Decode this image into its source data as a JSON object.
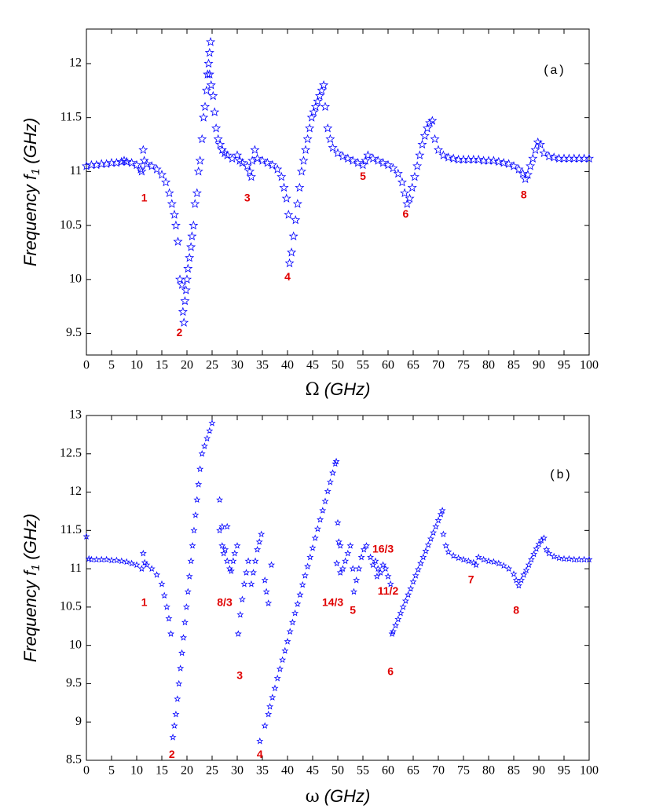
{
  "chart_data": [
    {
      "type": "scatter",
      "panel_label": "(a)",
      "xlabel": {
        "symbol": "Ω",
        "unit": "(GHz)"
      },
      "ylabel": {
        "text": "Frequency f",
        "subscript": "1",
        "unit": "(GHz)"
      },
      "color": "#0000ff",
      "xlim": [
        0,
        100
      ],
      "xticks": [
        0,
        5,
        10,
        15,
        20,
        25,
        30,
        35,
        40,
        45,
        50,
        55,
        60,
        65,
        70,
        75,
        80,
        85,
        90,
        95,
        100
      ],
      "ylim": [
        9.3,
        12.32
      ],
      "yticks": [
        9.5,
        10,
        10.5,
        11,
        11.5,
        12
      ],
      "annotations": [
        "1",
        "2",
        "3",
        "4",
        "5",
        "6",
        "8"
      ],
      "x": [
        0,
        1,
        2,
        3,
        4,
        5,
        6,
        7,
        7.5,
        8,
        9,
        10,
        10.8,
        11,
        11.3,
        11.5,
        12,
        13,
        14,
        15,
        15.8,
        16.5,
        17,
        17.5,
        17.8,
        18.2,
        18.6,
        19,
        19.2,
        19.4,
        19.6,
        19.8,
        20,
        20.2,
        20.5,
        20.8,
        21,
        21.3,
        21.6,
        22,
        22.3,
        22.6,
        23,
        23.3,
        23.6,
        23.9,
        24.1,
        24.3,
        24.5,
        24.7,
        24.5,
        24.8,
        25.2,
        25.5,
        25.8,
        26.2,
        26.6,
        27,
        27.5,
        28,
        29,
        30,
        30.5,
        31,
        32,
        32.5,
        32.8,
        33,
        33.5,
        34,
        35,
        36,
        37,
        38,
        38.8,
        39.3,
        39.8,
        40.2,
        40.4,
        40.8,
        41.2,
        41.6,
        42,
        42.4,
        42.8,
        43.2,
        43.6,
        44,
        44.4,
        44.8,
        45.2,
        45.6,
        46,
        46.4,
        46.8,
        47.2,
        47.5,
        48,
        48.5,
        49,
        50,
        51,
        52,
        53,
        54,
        55,
        55.5,
        56,
        57,
        58,
        59,
        60,
        61,
        62,
        62.8,
        63.3,
        63.8,
        64.3,
        64.8,
        65.3,
        65.8,
        66.3,
        66.8,
        67.3,
        67.8,
        68.3,
        68.8,
        69.3,
        70,
        71,
        72,
        73,
        74,
        75,
        76,
        77,
        78,
        79,
        80,
        81,
        82,
        83,
        84,
        85,
        86,
        86.8,
        87.3,
        87.8,
        88.3,
        88.8,
        89.3,
        89.8,
        90.3,
        91,
        92,
        93,
        94,
        95,
        96,
        97,
        98,
        99,
        100
      ],
      "values": [
        11.05,
        11.06,
        11.06,
        11.07,
        11.07,
        11.08,
        11.08,
        11.09,
        11.1,
        11.09,
        11.08,
        11.06,
        11.02,
        11.0,
        11.2,
        11.1,
        11.07,
        11.05,
        11.02,
        10.97,
        10.9,
        10.8,
        10.7,
        10.6,
        10.5,
        10.35,
        10.0,
        9.95,
        9.7,
        9.6,
        9.8,
        9.9,
        10.0,
        10.1,
        10.2,
        10.3,
        10.4,
        10.5,
        10.7,
        10.8,
        11.0,
        11.1,
        11.3,
        11.5,
        11.6,
        11.75,
        11.9,
        12.0,
        12.1,
        12.2,
        11.9,
        11.8,
        11.7,
        11.55,
        11.4,
        11.3,
        11.25,
        11.2,
        11.17,
        11.15,
        11.12,
        11.15,
        11.1,
        11.08,
        11.05,
        11.0,
        10.95,
        11.1,
        11.2,
        11.12,
        11.1,
        11.08,
        11.06,
        11.02,
        10.95,
        10.85,
        10.75,
        10.6,
        10.15,
        10.25,
        10.4,
        10.55,
        10.7,
        10.85,
        11.0,
        11.1,
        11.2,
        11.3,
        11.4,
        11.5,
        11.55,
        11.6,
        11.65,
        11.7,
        11.75,
        11.8,
        11.6,
        11.4,
        11.3,
        11.22,
        11.17,
        11.14,
        11.12,
        11.1,
        11.08,
        11.06,
        11.1,
        11.15,
        11.12,
        11.1,
        11.08,
        11.06,
        11.03,
        10.98,
        10.9,
        10.8,
        10.7,
        10.75,
        10.85,
        10.95,
        11.05,
        11.15,
        11.25,
        11.33,
        11.4,
        11.45,
        11.47,
        11.3,
        11.2,
        11.15,
        11.13,
        11.12,
        11.11,
        11.11,
        11.11,
        11.11,
        11.11,
        11.1,
        11.1,
        11.1,
        11.09,
        11.08,
        11.07,
        11.05,
        11.02,
        10.98,
        10.93,
        10.97,
        11.05,
        11.12,
        11.2,
        11.27,
        11.25,
        11.17,
        11.14,
        11.13,
        11.12,
        11.12,
        11.12,
        11.12,
        11.12,
        11.12,
        11.12
      ]
    },
    {
      "type": "scatter",
      "panel_label": "(b)",
      "xlabel": {
        "symbol": "ω",
        "unit": "(GHz)"
      },
      "ylabel": {
        "text": "Frequency f",
        "subscript": "1",
        "unit": "(GHz)"
      },
      "color": "#0000ff",
      "xlim": [
        0,
        100
      ],
      "xticks": [
        0,
        5,
        10,
        15,
        20,
        25,
        30,
        35,
        40,
        45,
        50,
        55,
        60,
        65,
        70,
        75,
        80,
        85,
        90,
        95,
        100
      ],
      "ylim": [
        8.5,
        13
      ],
      "yticks": [
        8.5,
        9,
        9.5,
        10,
        10.5,
        11,
        11.5,
        12,
        12.5,
        13
      ],
      "annotations": [
        "1",
        "2",
        "8/3",
        "3",
        "4",
        "14/3",
        "5",
        "16/3",
        "11/2",
        "6",
        "7",
        "8"
      ],
      "x": [
        0,
        0.5,
        1,
        2,
        3,
        4,
        5,
        6,
        7,
        8,
        9,
        10,
        11,
        11.3,
        11.6,
        12,
        13,
        14,
        15,
        15.5,
        16,
        16.4,
        16.8,
        17.2,
        17.5,
        17.8,
        18.1,
        18.4,
        18.7,
        19,
        19.3,
        19.6,
        19.9,
        20.2,
        20.5,
        20.8,
        21.1,
        21.4,
        21.7,
        22,
        22.3,
        22.6,
        23,
        23.5,
        24,
        24.5,
        25,
        26.5,
        26.5,
        27,
        27,
        27.3,
        27.6,
        28,
        28,
        28.5,
        28.8,
        29.2,
        29.5,
        30,
        30.2,
        30.6,
        31,
        31.4,
        31.8,
        32.2,
        32.8,
        33.2,
        33.6,
        34,
        34.4,
        34.8,
        35.5,
        35.8,
        36.2,
        36.8,
        34.5,
        35.5,
        36.2,
        36.5,
        37,
        37.5,
        38,
        38.5,
        39,
        39.5,
        40,
        40.5,
        41,
        41.5,
        42,
        42.5,
        43,
        43.5,
        44,
        44.5,
        45,
        45.5,
        46,
        46.5,
        47,
        47.5,
        48,
        48.5,
        49,
        49.5,
        49.7,
        50,
        50.2,
        50.5,
        49.8,
        50.5,
        51,
        51.5,
        52,
        52.5,
        53,
        53.2,
        53.7,
        54.2,
        54.7,
        55.2,
        55.7,
        56.5,
        57,
        57.5,
        57.8,
        58,
        58.5,
        59,
        59.5,
        60,
        60.5,
        60.8,
        61,
        61.5,
        62,
        62.5,
        63,
        63.5,
        64,
        64.5,
        65,
        65.5,
        66,
        66.5,
        67,
        67.5,
        68,
        68.5,
        69,
        69.5,
        70,
        70.5,
        70.8,
        71,
        71.5,
        72,
        73,
        74,
        75,
        76,
        77,
        77.5,
        78,
        79,
        80,
        81,
        82,
        83,
        84,
        85,
        85.5,
        86,
        86.5,
        87,
        87.5,
        88,
        88.5,
        89,
        89.5,
        90,
        90.5,
        91,
        91.5,
        92,
        93,
        94,
        95,
        96,
        97,
        98,
        99,
        100
      ],
      "values": [
        11.42,
        11.13,
        11.12,
        11.12,
        11.12,
        11.12,
        11.11,
        11.11,
        11.1,
        11.09,
        11.07,
        11.05,
        11.0,
        11.2,
        11.08,
        11.05,
        11.0,
        10.92,
        10.8,
        10.65,
        10.5,
        10.35,
        10.15,
        8.8,
        8.95,
        9.1,
        9.3,
        9.5,
        9.7,
        9.9,
        10.1,
        10.3,
        10.5,
        10.7,
        10.9,
        11.1,
        11.3,
        11.5,
        11.7,
        11.9,
        12.1,
        12.3,
        12.5,
        12.6,
        12.7,
        12.8,
        12.9,
        11.9,
        11.5,
        11.55,
        11.3,
        11.2,
        11.25,
        11.55,
        11.1,
        11.0,
        10.97,
        11.1,
        11.2,
        11.3,
        10.15,
        10.4,
        10.6,
        10.8,
        10.95,
        11.1,
        10.8,
        10.95,
        11.1,
        11.25,
        11.35,
        11.45,
        10.85,
        10.7,
        10.55,
        11.05,
        8.75,
        8.95,
        9.1,
        9.2,
        9.32,
        9.44,
        9.57,
        9.69,
        9.81,
        9.93,
        10.05,
        10.18,
        10.3,
        10.42,
        10.54,
        10.66,
        10.79,
        10.91,
        11.03,
        11.15,
        11.27,
        11.4,
        11.52,
        11.64,
        11.76,
        11.88,
        12.01,
        12.13,
        12.25,
        12.37,
        12.4,
        11.6,
        11.35,
        11.3,
        11.07,
        10.95,
        11.0,
        11.1,
        11.2,
        11.3,
        11.0,
        10.7,
        10.85,
        11.0,
        11.15,
        11.25,
        11.3,
        11.15,
        11.05,
        11.1,
        10.9,
        11.0,
        10.95,
        11.05,
        11.0,
        10.9,
        10.8,
        10.15,
        10.18,
        10.26,
        10.34,
        10.42,
        10.5,
        10.58,
        10.66,
        10.74,
        10.83,
        10.91,
        10.99,
        11.07,
        11.15,
        11.23,
        11.31,
        11.39,
        11.47,
        11.55,
        11.63,
        11.71,
        11.76,
        11.45,
        11.3,
        11.22,
        11.17,
        11.14,
        11.12,
        11.1,
        11.08,
        11.05,
        11.15,
        11.12,
        11.1,
        11.09,
        11.07,
        11.04,
        11.0,
        10.93,
        10.85,
        10.78,
        10.85,
        10.92,
        10.98,
        11.05,
        11.12,
        11.19,
        11.26,
        11.32,
        11.37,
        11.4,
        11.25,
        11.2,
        11.16,
        11.14,
        11.13,
        11.13,
        11.12,
        11.12,
        11.12,
        11.12
      ]
    }
  ]
}
